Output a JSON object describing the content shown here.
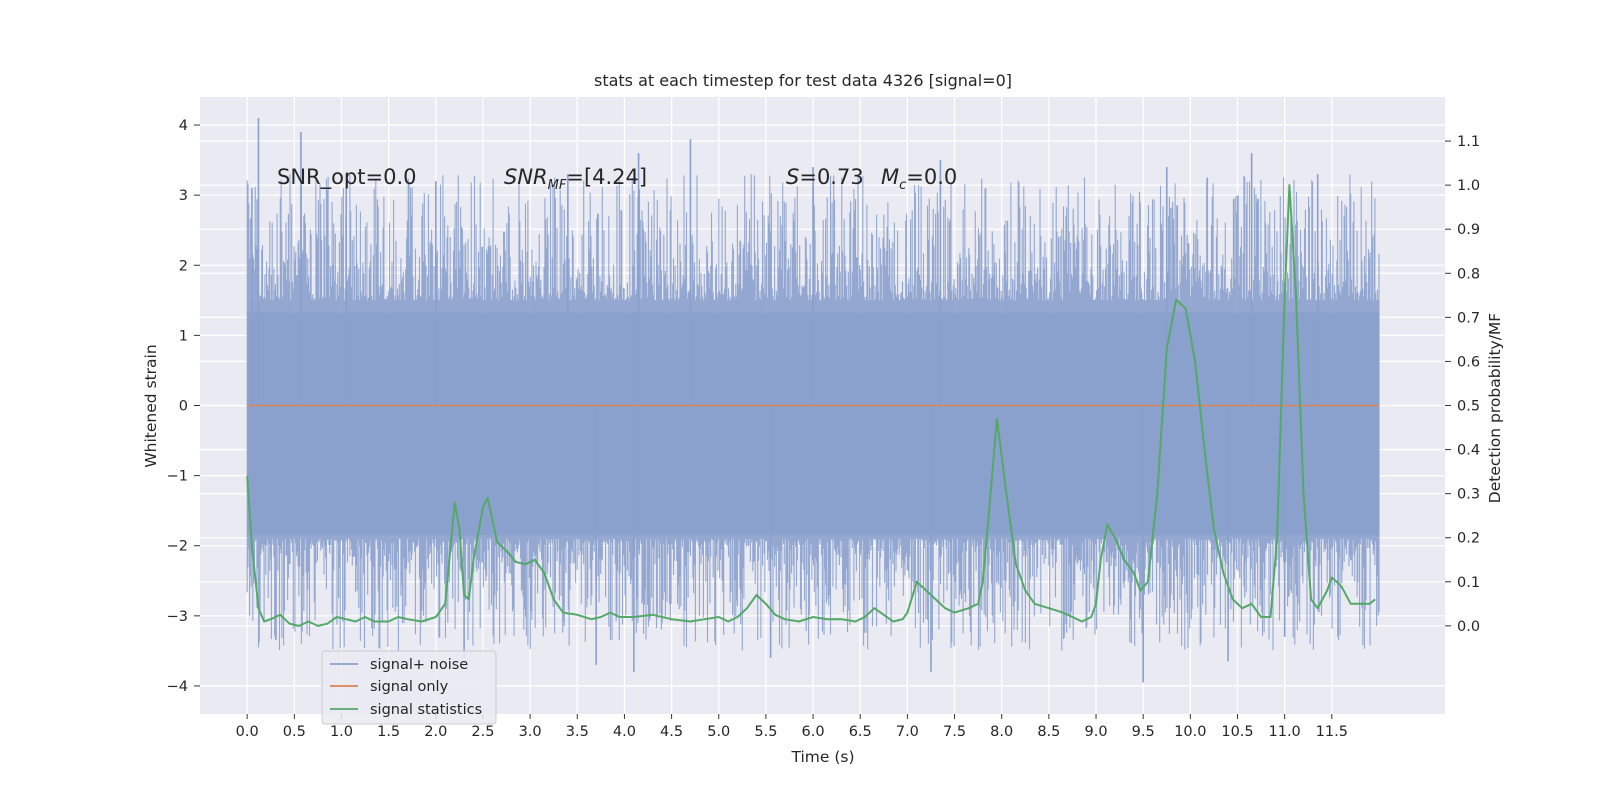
{
  "chart_data": {
    "type": "line",
    "title": "stats at each timestep for test data 4326 [signal=0]",
    "xlabel": "Time (s)",
    "ylabel": "Whitened strain",
    "ylabel_right": "Detection probability/MF",
    "xlim": [
      -0.5,
      12.7
    ],
    "ylim": [
      -4.4,
      4.4
    ],
    "ylim_right": [
      -0.2,
      1.2
    ],
    "x_ticks": [
      "0.0",
      "0.5",
      "1.0",
      "1.5",
      "2.0",
      "2.5",
      "3.0",
      "3.5",
      "4.0",
      "4.5",
      "5.0",
      "5.5",
      "6.0",
      "6.5",
      "7.0",
      "7.5",
      "8.0",
      "8.5",
      "9.0",
      "9.5",
      "10.0",
      "10.5",
      "11.0",
      "11.5"
    ],
    "y_ticks": [
      4,
      3,
      2,
      1,
      0,
      -1,
      -2,
      -3,
      -4
    ],
    "y_tick_labels": [
      "4",
      "3",
      "2",
      "1",
      "0",
      "−1",
      "−2",
      "−3",
      "−4"
    ],
    "y_ticks_right": [
      "1.1",
      "1.0",
      "0.9",
      "0.8",
      "0.7",
      "0.6",
      "0.5",
      "0.4",
      "0.3",
      "0.2",
      "0.1",
      "0.0"
    ],
    "grid": true,
    "legend_position": "lower-left",
    "annotations": {
      "snr_opt": "SNR_opt=0.0",
      "snr_mf_main": "SNR",
      "snr_mf_sub": "MF",
      "snr_mf_rest": "=[4.24]",
      "s_sym": "S",
      "s_rest": "=0.73",
      "mc_sym": "M",
      "mc_sub": "c",
      "mc_rest": "=0.0"
    },
    "series": [
      {
        "name": "signal+ noise",
        "color": "#8aa0cc",
        "axis": "left",
        "description_values": {
          "x_range": [
            0.0,
            12.0
          ],
          "upper_peaks": [
            {
              "x": 0.12,
              "y": 4.1
            },
            {
              "x": 0.57,
              "y": 3.9
            },
            {
              "x": 4.7,
              "y": 3.8
            },
            {
              "x": 0.05,
              "y": 3.1
            },
            {
              "x": 1.05,
              "y": 3.3
            },
            {
              "x": 2.0,
              "y": 3.2
            },
            {
              "x": 3.4,
              "y": 3.3
            },
            {
              "x": 4.15,
              "y": 3.6
            },
            {
              "x": 6.0,
              "y": 3.4
            },
            {
              "x": 7.35,
              "y": 3.5
            },
            {
              "x": 9.75,
              "y": 3.4
            },
            {
              "x": 10.65,
              "y": 3.6
            },
            {
              "x": 11.35,
              "y": 3.3
            }
          ],
          "lower_peaks": [
            {
              "x": 2.3,
              "y": -3.6
            },
            {
              "x": 3.7,
              "y": -3.7
            },
            {
              "x": 4.1,
              "y": -3.8
            },
            {
              "x": 5.55,
              "y": -3.6
            },
            {
              "x": 7.25,
              "y": -3.8
            },
            {
              "x": 9.5,
              "y": -3.95
            },
            {
              "x": 10.4,
              "y": -3.65
            },
            {
              "x": 11.0,
              "y": -3.3
            }
          ]
        }
      },
      {
        "name": "signal only",
        "color": "#dd8452",
        "axis": "left",
        "x": [
          0.0,
          12.0
        ],
        "y": [
          0.0,
          0.0
        ]
      },
      {
        "name": "signal statistics",
        "color": "#55a868",
        "axis": "right",
        "x": [
          0.0,
          0.05,
          0.12,
          0.18,
          0.25,
          0.35,
          0.45,
          0.55,
          0.65,
          0.75,
          0.85,
          0.95,
          1.05,
          1.15,
          1.25,
          1.35,
          1.5,
          1.6,
          1.7,
          1.85,
          2.0,
          2.1,
          2.2,
          2.25,
          2.3,
          2.35,
          2.4,
          2.5,
          2.55,
          2.65,
          2.75,
          2.85,
          2.95,
          3.05,
          3.15,
          3.25,
          3.35,
          3.5,
          3.65,
          3.75,
          3.85,
          3.95,
          4.1,
          4.3,
          4.5,
          4.7,
          4.85,
          5.0,
          5.1,
          5.2,
          5.3,
          5.4,
          5.5,
          5.6,
          5.7,
          5.85,
          6.0,
          6.15,
          6.3,
          6.45,
          6.55,
          6.65,
          6.75,
          6.85,
          6.95,
          7.0,
          7.1,
          7.2,
          7.3,
          7.4,
          7.5,
          7.65,
          7.75,
          7.8,
          7.87,
          7.95,
          8.05,
          8.15,
          8.25,
          8.35,
          8.5,
          8.65,
          8.75,
          8.85,
          8.95,
          9.0,
          9.05,
          9.12,
          9.2,
          9.3,
          9.4,
          9.47,
          9.55,
          9.65,
          9.75,
          9.85,
          9.95,
          10.05,
          10.15,
          10.25,
          10.35,
          10.45,
          10.55,
          10.65,
          10.75,
          10.85,
          10.92,
          11.0,
          11.05,
          11.12,
          11.2,
          11.28,
          11.35,
          11.45,
          11.5,
          11.6,
          11.7,
          11.8,
          11.9,
          11.96
        ],
        "y": [
          0.34,
          0.18,
          0.04,
          0.01,
          0.015,
          0.025,
          0.005,
          0.0,
          0.01,
          0.0,
          0.005,
          0.02,
          0.015,
          0.01,
          0.02,
          0.01,
          0.01,
          0.02,
          0.015,
          0.01,
          0.02,
          0.05,
          0.28,
          0.22,
          0.07,
          0.06,
          0.15,
          0.27,
          0.29,
          0.19,
          0.17,
          0.145,
          0.14,
          0.15,
          0.12,
          0.06,
          0.03,
          0.025,
          0.015,
          0.02,
          0.03,
          0.02,
          0.02,
          0.025,
          0.015,
          0.01,
          0.015,
          0.02,
          0.01,
          0.02,
          0.04,
          0.07,
          0.05,
          0.025,
          0.015,
          0.01,
          0.02,
          0.015,
          0.015,
          0.01,
          0.02,
          0.04,
          0.025,
          0.01,
          0.015,
          0.03,
          0.1,
          0.08,
          0.06,
          0.04,
          0.03,
          0.04,
          0.05,
          0.1,
          0.27,
          0.47,
          0.3,
          0.14,
          0.08,
          0.05,
          0.04,
          0.03,
          0.02,
          0.01,
          0.02,
          0.05,
          0.15,
          0.23,
          0.2,
          0.15,
          0.12,
          0.08,
          0.1,
          0.3,
          0.63,
          0.74,
          0.72,
          0.6,
          0.4,
          0.22,
          0.12,
          0.06,
          0.04,
          0.05,
          0.02,
          0.02,
          0.2,
          0.75,
          1.0,
          0.75,
          0.3,
          0.06,
          0.04,
          0.08,
          0.11,
          0.09,
          0.05,
          0.05,
          0.05,
          0.06
        ]
      }
    ]
  }
}
